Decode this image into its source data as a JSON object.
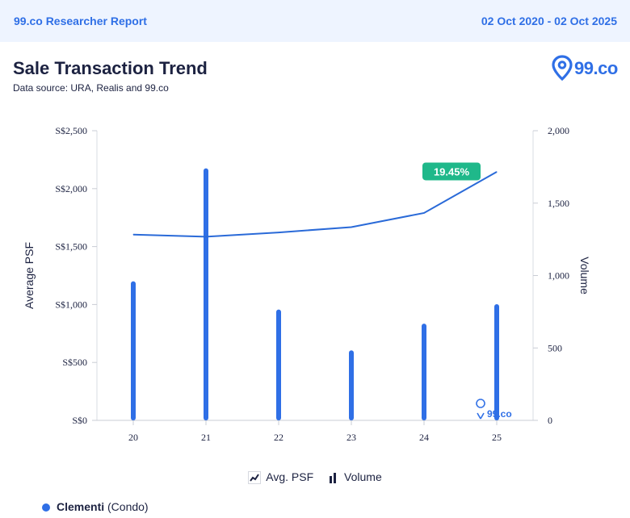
{
  "header": {
    "report_title": "99.co Researcher Report",
    "date_range": "02 Oct 2020 - 02 Oct 2025"
  },
  "page": {
    "title": "Sale Transaction Trend",
    "source": "Data source: URA, Realis and 99.co"
  },
  "logo": {
    "text": "99.co",
    "icon": "location-pin-icon"
  },
  "watermark": {
    "text": "99.co"
  },
  "colors": {
    "accent": "#2f6fe6",
    "badge": "#1fb88a",
    "line": "#2a6ad8"
  },
  "legend": {
    "line_label": "Avg. PSF",
    "bar_label": "Volume"
  },
  "series_label": {
    "name": "Clementi",
    "type": "(Condo)"
  },
  "chart_data": {
    "type": "bar+line",
    "categories": [
      "20",
      "21",
      "22",
      "23",
      "24",
      "25"
    ],
    "ylabel_left": "Average PSF",
    "ylabel_right": "Volume",
    "ylim_left": [
      0,
      2500
    ],
    "ylim_right": [
      0,
      2000
    ],
    "yticks_left": [
      "S$0",
      "S$500",
      "S$1,000",
      "S$1,500",
      "S$2,000",
      "S$2,500"
    ],
    "yticks_right": [
      "0",
      "500",
      "1,000",
      "1,500",
      "2,000"
    ],
    "series": [
      {
        "name": "Avg. PSF",
        "type": "line",
        "axis": "left",
        "values": [
          1603,
          1585,
          1622,
          1668,
          1790,
          2145
        ]
      },
      {
        "name": "Volume",
        "type": "bar",
        "axis": "right",
        "values": [
          960,
          1740,
          765,
          483,
          668,
          802
        ]
      }
    ],
    "annotation": {
      "text": "19.45%",
      "category": "25"
    },
    "grid": false,
    "legend_position": "bottom"
  }
}
